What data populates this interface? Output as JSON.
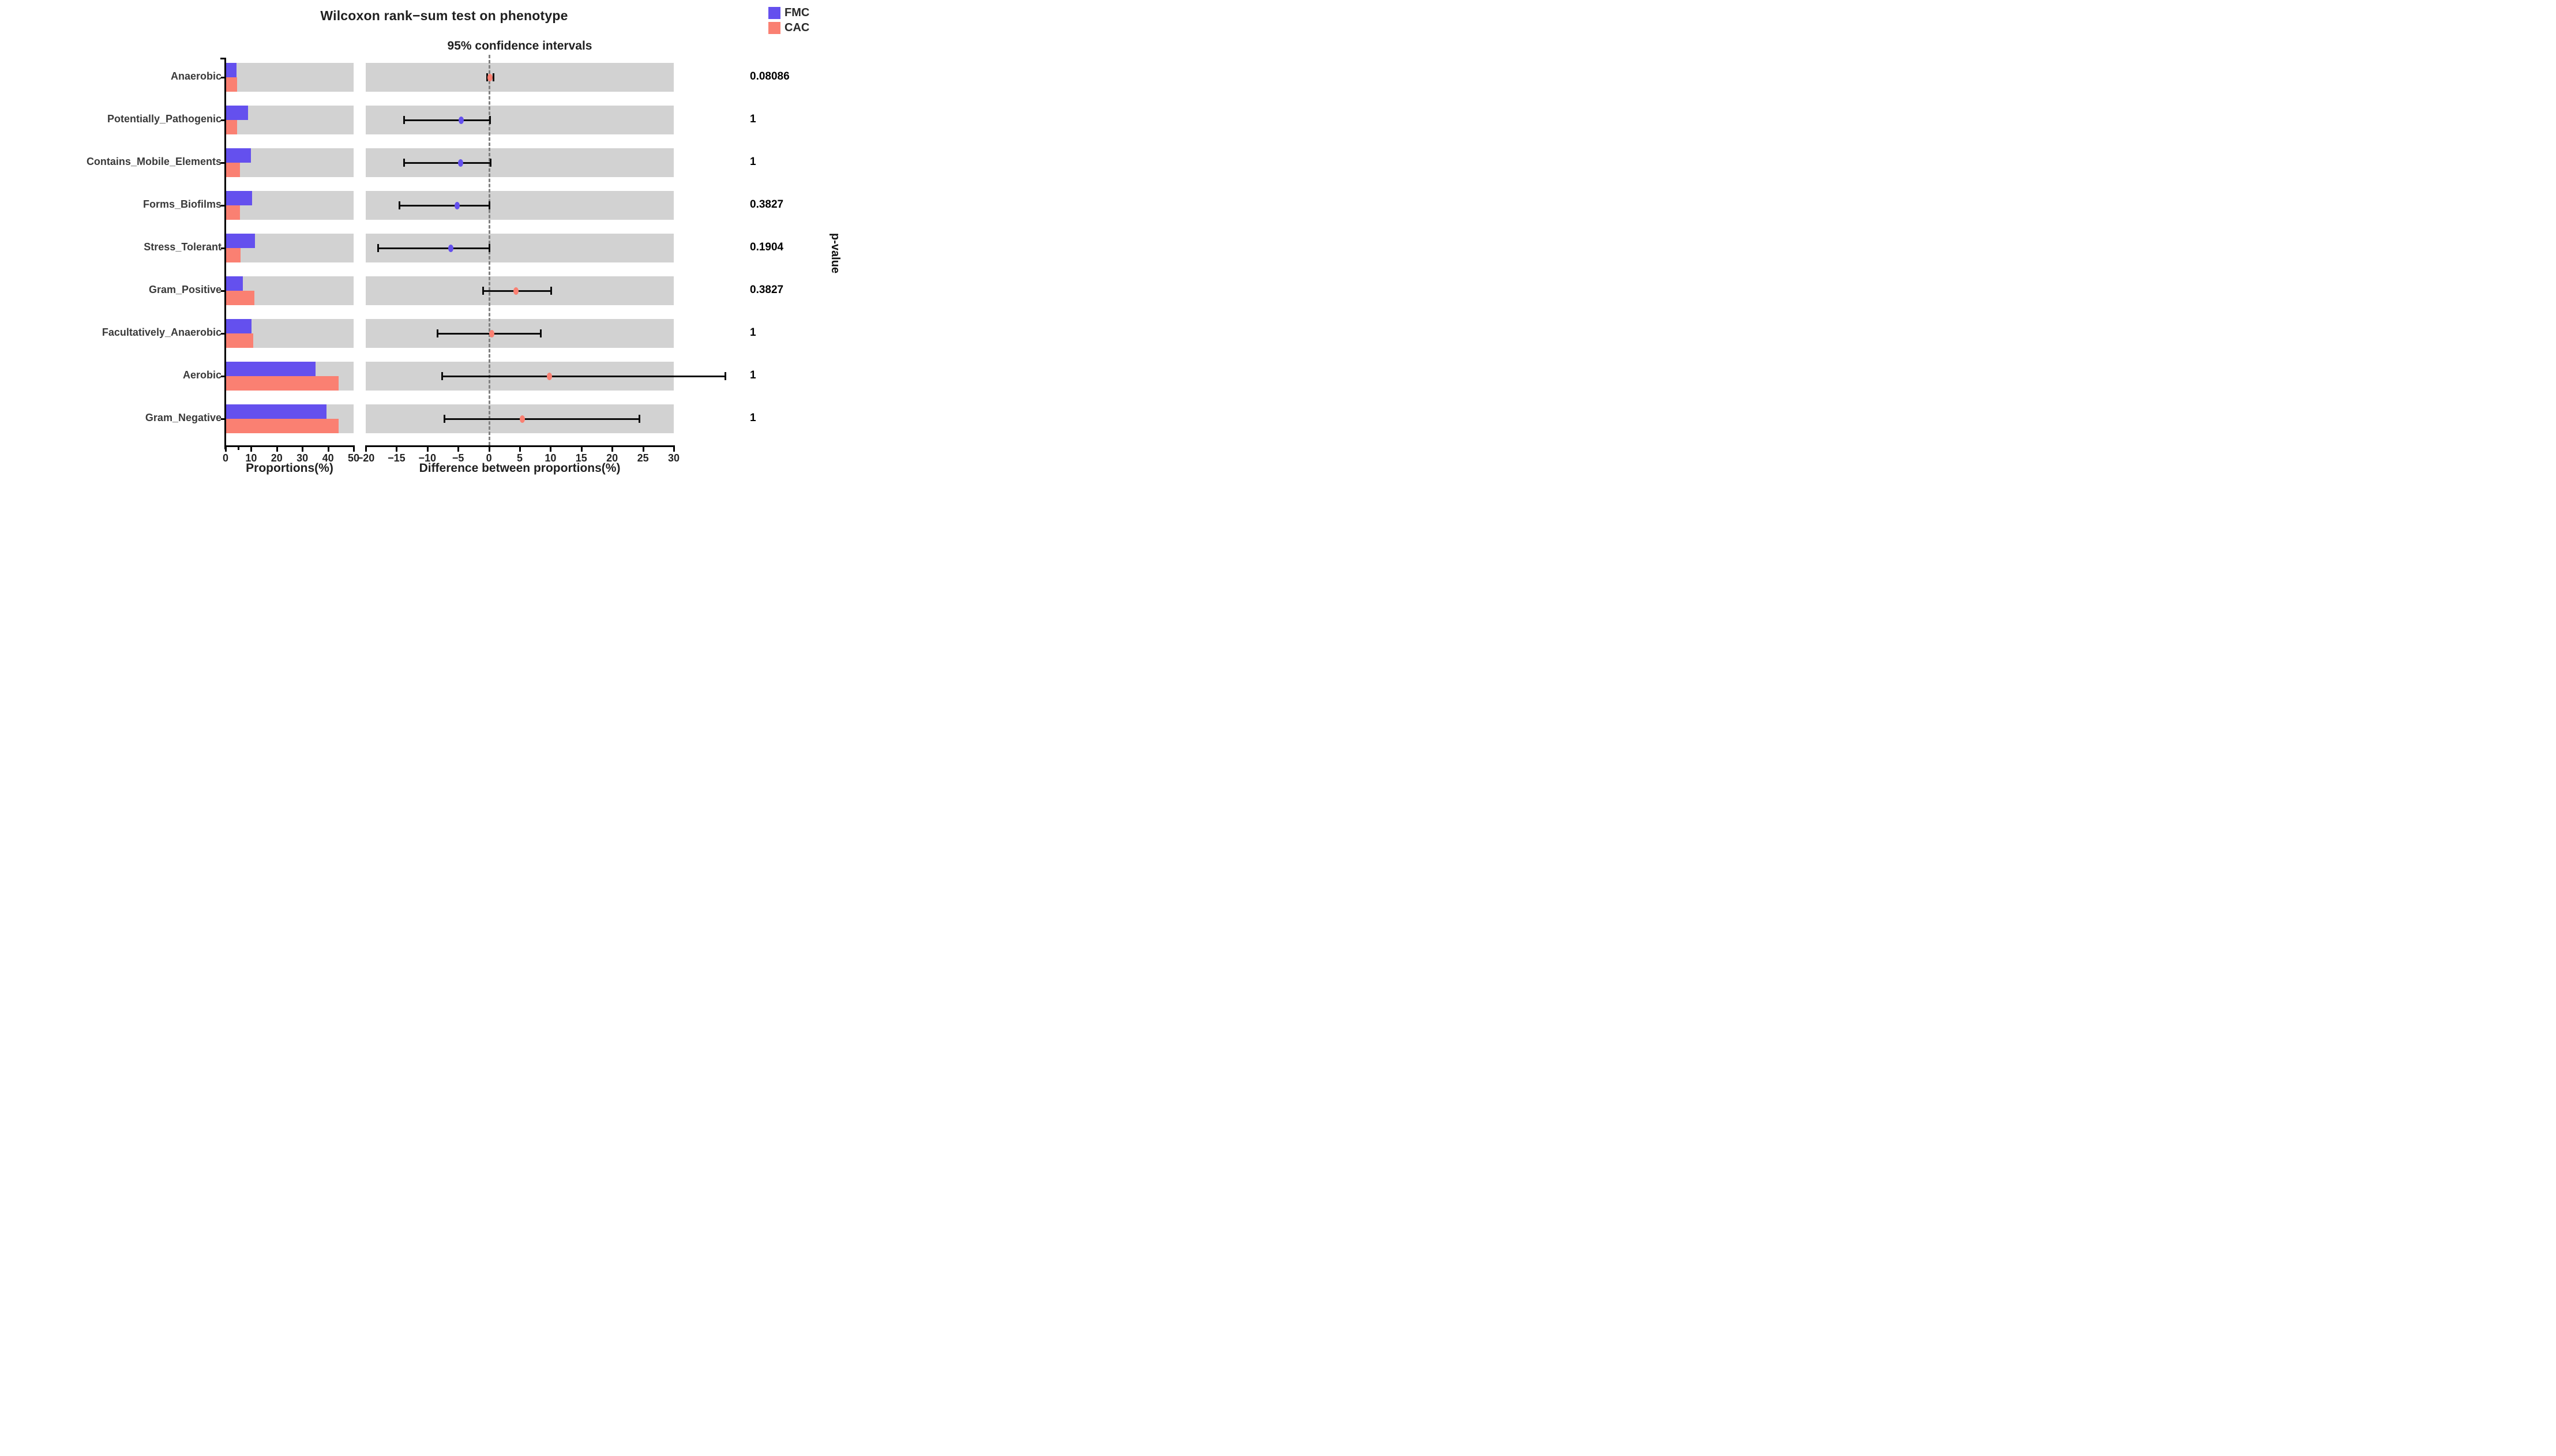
{
  "title": "Wilcoxon rank−sum test on phenotype",
  "subtitle": "95% confidence intervals",
  "legend": {
    "items": [
      {
        "label": "FMC",
        "color": "#6450ee"
      },
      {
        "label": "CAC",
        "color": "#fa8072"
      }
    ]
  },
  "colors": {
    "fmc": "#6450ee",
    "cac": "#fa8072",
    "background_band": "#d2d2d2",
    "zero_line": "#808080",
    "error_bar": "#0a0a0a"
  },
  "chart_data": {
    "type": "bar",
    "subtype": "stamp_extended_error_bar",
    "categories": [
      "Anaerobic",
      "Potentially_Pathogenic",
      "Contains_Mobile_Elements",
      "Forms_Biofilms",
      "Stress_Tolerant",
      "Gram_Positive",
      "Facultatively_Anaerobic",
      "Aerobic",
      "Gram_Negative"
    ],
    "proportions_pct": {
      "xlabel": "Proportions(%)",
      "xlim": [
        0,
        50
      ],
      "tick_values": [
        0,
        10,
        20,
        30,
        40,
        50
      ],
      "tick_labels": [
        "0",
        "10",
        "20",
        "30",
        "40",
        "50"
      ],
      "series": [
        {
          "name": "FMC",
          "values": [
            4.2,
            8.8,
            9.8,
            10.4,
            11.5,
            6.8,
            10.2,
            35.2,
            39.5
          ]
        },
        {
          "name": "CAC",
          "values": [
            4.4,
            4.4,
            5.6,
            5.6,
            5.9,
            11.2,
            10.8,
            44.2,
            44.2
          ]
        }
      ]
    },
    "difference_panel": {
      "xlabel": "Difference between proportions(%)",
      "xlim": [
        -20,
        30
      ],
      "tick_values": [
        -20,
        -15,
        -10,
        -5,
        0,
        5,
        10,
        15,
        20,
        25,
        30
      ],
      "tick_labels": [
        "−20",
        "−15",
        "−10",
        "−5",
        "0",
        "5",
        "10",
        "15",
        "20",
        "25",
        "30"
      ],
      "zero_line": 0,
      "points": [
        {
          "category": "Anaerobic",
          "diff": 0.15,
          "ci_low": -0.35,
          "ci_high": 0.65,
          "dot_group": "CAC"
        },
        {
          "category": "Potentially_Pathogenic",
          "diff": -4.5,
          "ci_low": -13.8,
          "ci_high": 0.1,
          "dot_group": "FMC"
        },
        {
          "category": "Contains_Mobile_Elements",
          "diff": -4.6,
          "ci_low": -13.8,
          "ci_high": 0.2,
          "dot_group": "FMC"
        },
        {
          "category": "Forms_Biofilms",
          "diff": -5.2,
          "ci_low": -14.6,
          "ci_high": 0.0,
          "dot_group": "FMC"
        },
        {
          "category": "Stress_Tolerant",
          "diff": -6.2,
          "ci_low": -18.0,
          "ci_high": 0.0,
          "dot_group": "FMC"
        },
        {
          "category": "Gram_Positive",
          "diff": 4.4,
          "ci_low": -1.0,
          "ci_high": 10.1,
          "dot_group": "CAC"
        },
        {
          "category": "Facultatively_Anaerobic",
          "diff": 0.5,
          "ci_low": -8.4,
          "ci_high": 8.4,
          "dot_group": "CAC"
        },
        {
          "category": "Aerobic",
          "diff": 9.8,
          "ci_low": -7.6,
          "ci_high": 38.3,
          "dot_group": "CAC"
        },
        {
          "category": "Gram_Negative",
          "diff": 5.4,
          "ci_low": -7.3,
          "ci_high": 24.4,
          "dot_group": "CAC"
        }
      ]
    },
    "p_values": [
      "0.08086",
      "1",
      "1",
      "0.3827",
      "0.1904",
      "0.3827",
      "1",
      "1",
      "1"
    ],
    "p_value_axis_label": "p-value"
  }
}
